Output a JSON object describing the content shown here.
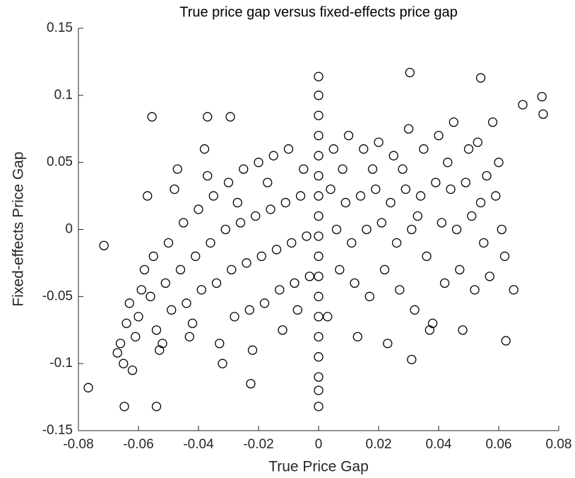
{
  "chart_data": {
    "type": "scatter",
    "title": "True price gap versus fixed-effects price gap",
    "x_label": "True Price Gap",
    "y_label": "Fixed-effects Price Gap",
    "color": "#000000",
    "xlim": [
      -0.08,
      0.08
    ],
    "xticks": [
      -0.08,
      -0.06,
      -0.04,
      -0.02,
      0,
      0.02,
      0.04,
      0.06,
      0.08
    ],
    "ylim": [
      -0.15,
      0.15
    ],
    "yticks": [
      -0.15,
      -0.1,
      -0.05,
      0,
      0.05,
      0.1,
      0.15
    ],
    "grid": false,
    "x": [
      -0.066,
      -0.064,
      -0.065,
      -0.063,
      -0.067,
      -0.061,
      -0.059,
      -0.06,
      -0.062,
      -0.058,
      -0.056,
      -0.054,
      -0.055,
      -0.053,
      -0.057,
      -0.051,
      -0.049,
      -0.05,
      -0.052,
      -0.048,
      -0.046,
      -0.044,
      -0.045,
      -0.043,
      -0.047,
      -0.041,
      -0.039,
      -0.04,
      -0.042,
      -0.038,
      -0.036,
      -0.034,
      -0.035,
      -0.033,
      -0.037,
      -0.031,
      -0.029,
      -0.03,
      -0.028,
      -0.032,
      -0.026,
      -0.024,
      -0.025,
      -0.023,
      -0.027,
      -0.021,
      -0.019,
      -0.02,
      -0.018,
      -0.022,
      -0.016,
      -0.014,
      -0.015,
      -0.013,
      -0.017,
      -0.011,
      -0.009,
      -0.01,
      -0.008,
      -0.012,
      -0.006,
      -0.004,
      -0.005,
      -0.003,
      -0.007,
      0.004,
      0.006,
      0.005,
      0.007,
      0.003,
      0.009,
      0.011,
      0.01,
      0.012,
      0.008,
      0.014,
      0.016,
      0.015,
      0.017,
      0.013,
      0.019,
      0.021,
      0.02,
      0.022,
      0.018,
      0.024,
      0.026,
      0.025,
      0.027,
      0.023,
      0.029,
      0.031,
      0.03,
      0.032,
      0.028,
      0.034,
      0.036,
      0.035,
      0.037,
      0.033,
      0.039,
      0.041,
      0.04,
      0.042,
      0.038,
      0.044,
      0.046,
      0.045,
      0.047,
      0.043,
      0.049,
      0.051,
      0.05,
      0.052,
      0.048,
      0.054,
      0.056,
      0.055,
      0.057,
      0.053,
      0.059,
      0.061,
      0.06,
      0.062,
      0.058,
      0,
      0,
      0,
      0,
      0,
      0,
      0,
      0,
      0,
      0,
      0,
      0,
      0,
      0,
      0,
      0,
      0,
      0,
      -0.0555,
      -0.037,
      -0.0294,
      -0.0715,
      -0.0767,
      -0.054,
      -0.0647,
      0.0304,
      0.054,
      0.0744,
      0.0748,
      0.0624,
      0.031,
      0.068,
      0.065,
      -0.0226
    ],
    "values": [
      -0.085,
      -0.07,
      -0.1,
      -0.055,
      -0.092,
      -0.08,
      -0.045,
      -0.065,
      -0.105,
      -0.03,
      -0.05,
      -0.075,
      -0.02,
      -0.09,
      0.025,
      -0.04,
      -0.06,
      -0.01,
      -0.085,
      0.03,
      -0.03,
      -0.055,
      0.005,
      -0.08,
      0.045,
      -0.02,
      -0.045,
      0.015,
      -0.07,
      0.06,
      -0.01,
      -0.04,
      0.025,
      -0.085,
      0.04,
      0.0,
      -0.03,
      0.035,
      -0.065,
      -0.1,
      0.005,
      -0.025,
      0.045,
      -0.06,
      0.02,
      0.01,
      -0.02,
      0.05,
      -0.055,
      -0.09,
      0.015,
      -0.015,
      0.055,
      -0.045,
      0.035,
      0.02,
      -0.01,
      0.06,
      -0.04,
      -0.075,
      0.025,
      -0.005,
      0.045,
      -0.035,
      -0.06,
      0.03,
      0.0,
      0.06,
      -0.03,
      -0.065,
      0.02,
      -0.01,
      0.07,
      -0.04,
      0.045,
      0.025,
      0.0,
      0.06,
      -0.05,
      -0.08,
      0.03,
      0.005,
      0.065,
      -0.03,
      0.045,
      0.02,
      -0.01,
      0.055,
      -0.045,
      -0.085,
      0.03,
      0.0,
      0.075,
      -0.06,
      0.045,
      0.025,
      -0.02,
      0.06,
      -0.075,
      0.01,
      0.035,
      0.005,
      0.07,
      -0.04,
      -0.07,
      0.03,
      0.0,
      0.08,
      -0.03,
      0.05,
      0.035,
      0.01,
      0.06,
      -0.045,
      -0.075,
      0.02,
      0.04,
      -0.01,
      -0.035,
      0.065,
      0.025,
      0.0,
      0.05,
      -0.02,
      0.08,
      0.114,
      0.1,
      0.085,
      0.07,
      0.055,
      0.04,
      0.025,
      0.01,
      -0.005,
      -0.02,
      -0.035,
      -0.05,
      -0.065,
      -0.08,
      -0.095,
      -0.11,
      -0.12,
      -0.132,
      0.084,
      0.084,
      0.084,
      -0.012,
      -0.118,
      -0.132,
      -0.132,
      0.117,
      0.113,
      0.099,
      0.086,
      -0.083,
      -0.097,
      0.093,
      -0.045,
      -0.115
    ]
  }
}
